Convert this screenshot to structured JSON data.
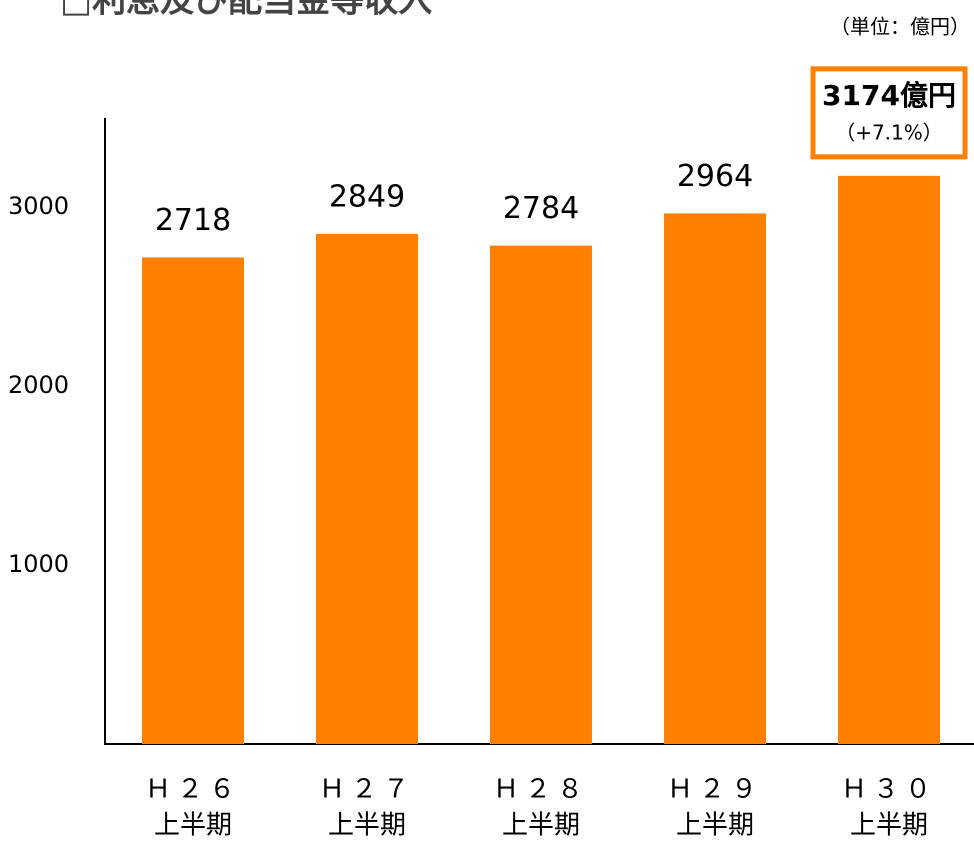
{
  "chart_data": {
    "type": "bar",
    "title": "□利息及び配当金等収入",
    "unit_label": "（単位：億円）",
    "categories": [
      "Ｈ２６",
      "Ｈ２７",
      "Ｈ２８",
      "Ｈ２９",
      "Ｈ３０"
    ],
    "category_sublabels": [
      "上半期",
      "上半期",
      "上半期",
      "上半期",
      "上半期"
    ],
    "values": [
      2718,
      2849,
      2784,
      2964,
      3174
    ],
    "value_labels": [
      "2718",
      "2849",
      "2784",
      "2964",
      "3174億円"
    ],
    "annotation": "（+7.1%）",
    "color": "#ff7f00",
    "ylim": [
      0,
      3500
    ],
    "yticks": [
      1000,
      2000,
      3000
    ],
    "grid": false
  }
}
